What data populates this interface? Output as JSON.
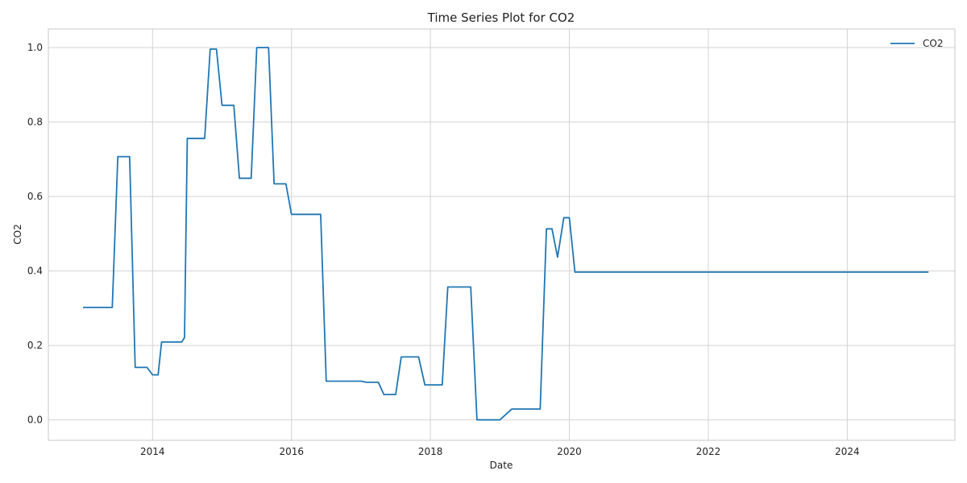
{
  "chart_data": {
    "type": "line",
    "title": "Time Series Plot for CO2",
    "xlabel": "Date",
    "ylabel": "CO2",
    "xlim": [
      2012.5,
      2025.55
    ],
    "ylim": [
      -0.055,
      1.05
    ],
    "x_ticks": [
      2014,
      2016,
      2018,
      2020,
      2022,
      2024
    ],
    "x_tick_labels": [
      "2014",
      "2016",
      "2018",
      "2020",
      "2022",
      "2024"
    ],
    "y_ticks": [
      0.0,
      0.2,
      0.4,
      0.6,
      0.8,
      1.0
    ],
    "y_tick_labels": [
      "0.0",
      "0.2",
      "0.4",
      "0.6",
      "0.8",
      "1.0"
    ],
    "grid": true,
    "legend": {
      "position": "top-right"
    },
    "series": [
      {
        "name": "CO2",
        "color": "#1f77b4",
        "x": [
          2013.0,
          2013.42,
          2013.5,
          2013.58,
          2013.67,
          2013.75,
          2013.83,
          2013.92,
          2014.0,
          2014.08,
          2014.13,
          2014.42,
          2014.46,
          2014.5,
          2014.58,
          2014.75,
          2014.83,
          2014.92,
          2015.0,
          2015.08,
          2015.17,
          2015.25,
          2015.33,
          2015.42,
          2015.5,
          2015.58,
          2015.67,
          2015.75,
          2015.83,
          2015.92,
          2016.0,
          2016.08,
          2016.42,
          2016.5,
          2016.58,
          2017.0,
          2017.08,
          2017.25,
          2017.33,
          2017.5,
          2017.58,
          2017.83,
          2017.92,
          2018.17,
          2018.25,
          2018.58,
          2018.67,
          2019.0,
          2019.17,
          2019.58,
          2019.67,
          2019.75,
          2019.83,
          2019.92,
          2020.0,
          2020.08,
          2022.0,
          2024.0,
          2025.17
        ],
        "y": [
          0.302,
          0.302,
          0.707,
          0.707,
          0.707,
          0.141,
          0.141,
          0.141,
          0.121,
          0.121,
          0.209,
          0.209,
          0.221,
          0.756,
          0.756,
          0.756,
          0.996,
          0.996,
          0.845,
          0.845,
          0.845,
          0.649,
          0.649,
          0.649,
          1.0,
          1.0,
          1.0,
          0.634,
          0.634,
          0.634,
          0.552,
          0.552,
          0.552,
          0.104,
          0.104,
          0.104,
          0.101,
          0.101,
          0.068,
          0.068,
          0.169,
          0.169,
          0.094,
          0.094,
          0.357,
          0.357,
          0.0,
          0.0,
          0.029,
          0.029,
          0.513,
          0.513,
          0.437,
          0.543,
          0.543,
          0.397,
          0.397,
          0.397,
          0.397
        ]
      }
    ]
  }
}
